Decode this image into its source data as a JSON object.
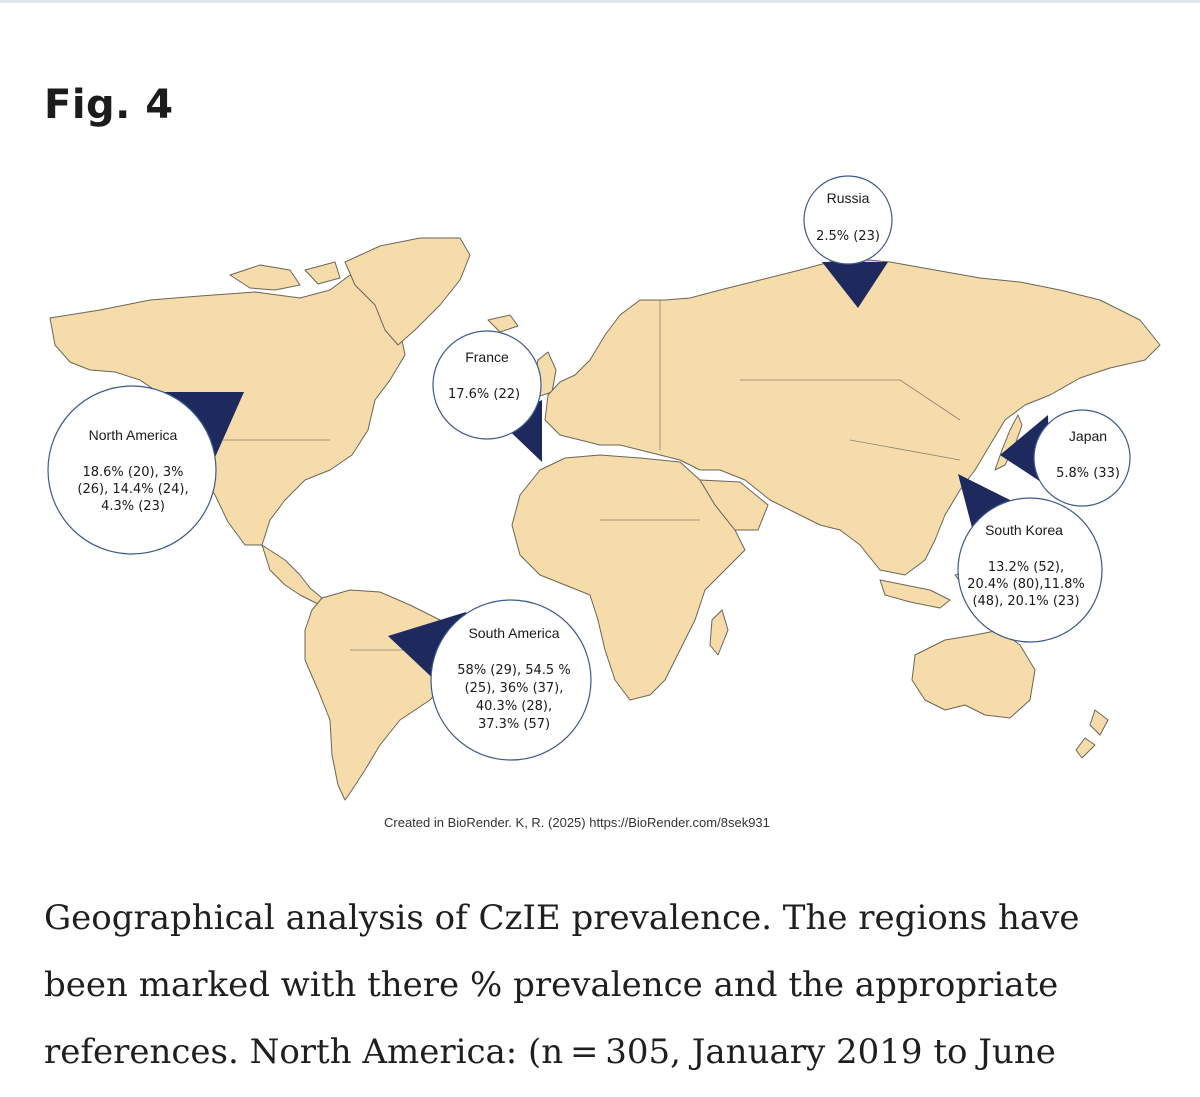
{
  "figure": {
    "label": "Fig. 4",
    "credit": "Created in BioRender. K, R. (2025) https://BioRender.com/8sek931"
  },
  "callouts": {
    "russia": {
      "region": "Russia",
      "values": [
        "2.5% (23)"
      ]
    },
    "france": {
      "region": "France",
      "values": [
        "17.6% (22)"
      ]
    },
    "north_america": {
      "region": "North America",
      "values": [
        "18.6% (20), 3%",
        "(26), 14.4% (24),",
        "4.3% (23)"
      ]
    },
    "japan": {
      "region": "Japan",
      "values": [
        "5.8% (33)"
      ]
    },
    "south_korea": {
      "region": "South Korea",
      "values": [
        "13.2% (52),",
        "20.4% (80),11.8%",
        "(48), 20.1% (23)"
      ]
    },
    "south_america": {
      "region": "South America",
      "values": [
        "58% (29), 54.5 %",
        "(25), 36% (37),",
        "40.3% (28),",
        "37.3% (57)"
      ]
    }
  },
  "caption": {
    "lines": [
      "Geographical analysis of CzIE prevalence. The regions have",
      "been marked with there % prevalence and the appropriate",
      "references. North America: (n = 305, January 2019 to June"
    ]
  },
  "colors": {
    "land": "#f5dcaa",
    "land_stroke": "#6b6558",
    "pointer": "#1e2a5e",
    "circle_stroke": "#3a5a8c"
  }
}
